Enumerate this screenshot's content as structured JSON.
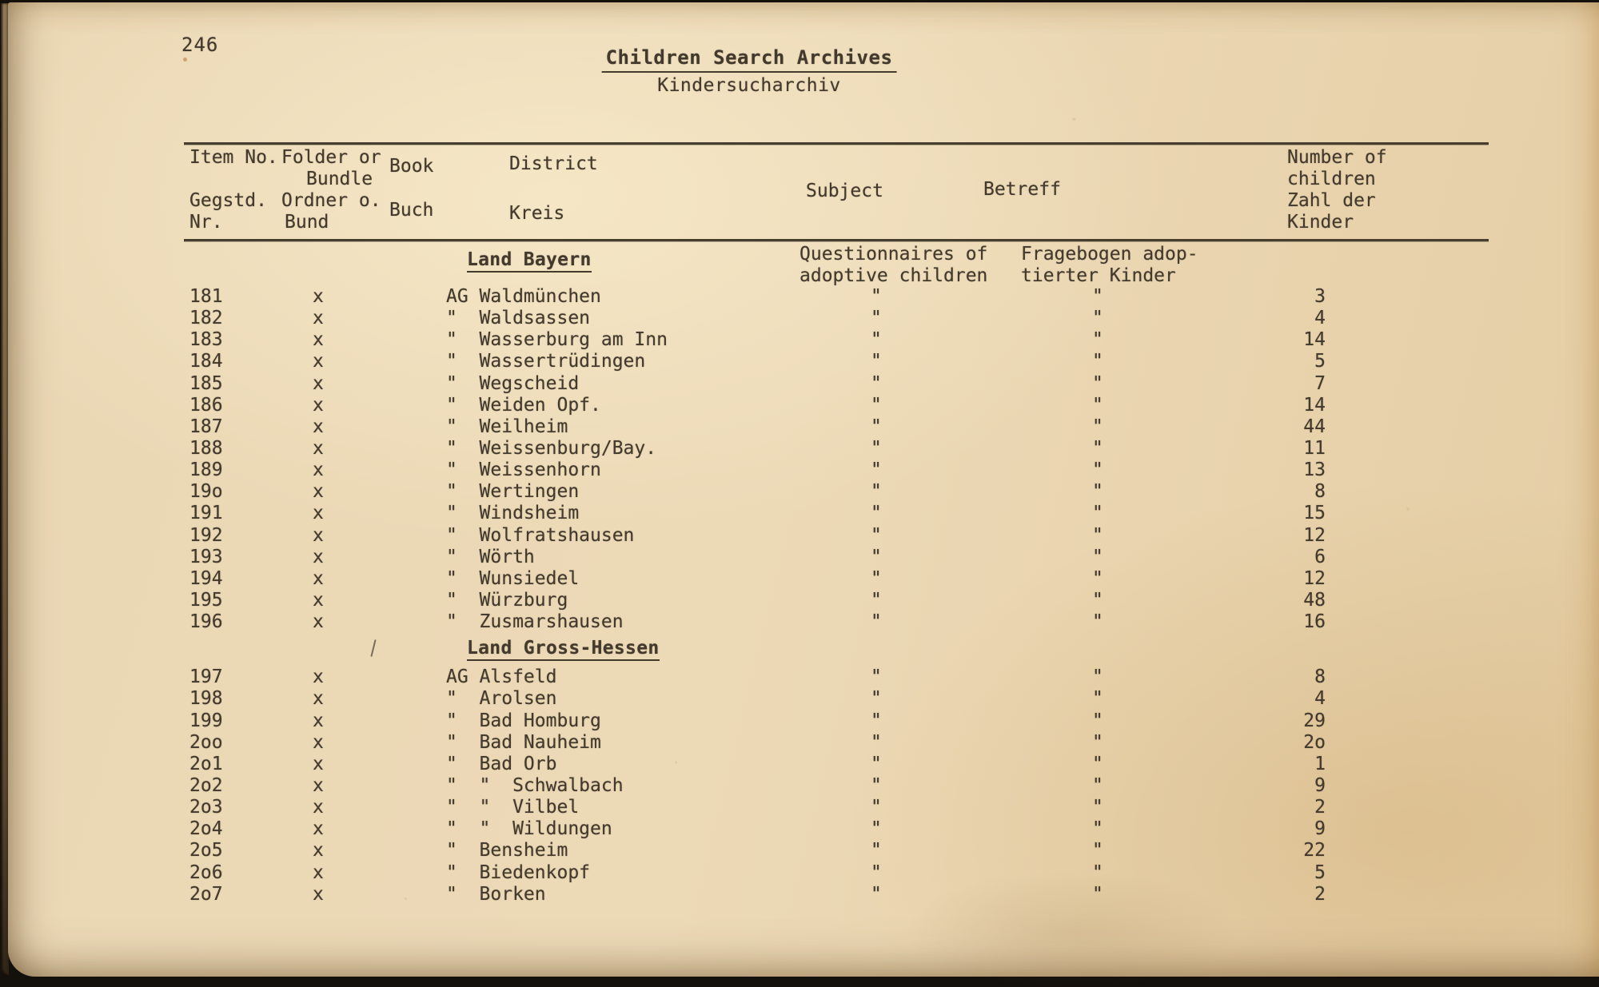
{
  "page": {
    "number": "246",
    "title_en": "Children Search Archives",
    "title_de": "Kindersucharchiv"
  },
  "table": {
    "headers": {
      "item_en": "Item No.",
      "item_de_1": "Gegstd.",
      "item_de_2": "Nr.",
      "folder_en_1": "Folder or",
      "folder_en_2": "Bundle",
      "folder_de_1": "Ordner o.",
      "folder_de_2": "Bund",
      "book_en": "Book",
      "book_de": "Buch",
      "district_en": "District",
      "district_de": "Kreis",
      "subject_en": "Subject",
      "subject_de": "Betreff",
      "number_1": "Number of",
      "number_2": "children",
      "number_3": "Zahl der",
      "number_4": "Kinder"
    },
    "sections": [
      {
        "title": "Land Bayern",
        "note_en_1": "Questionnaires of",
        "note_en_2": "adoptive children",
        "note_de_1": "Fragebogen adop-",
        "note_de_2": "tierter Kinder",
        "rows": [
          {
            "item": "181",
            "folder": "x",
            "district": "AG Waldmünchen",
            "subject": "\"",
            "betreff": "\"",
            "children": "3"
          },
          {
            "item": "182",
            "folder": "x",
            "district": "\"  Waldsassen",
            "subject": "\"",
            "betreff": "\"",
            "children": "4"
          },
          {
            "item": "183",
            "folder": "x",
            "district": "\"  Wasserburg am Inn",
            "subject": "\"",
            "betreff": "\"",
            "children": "14"
          },
          {
            "item": "184",
            "folder": "x",
            "district": "\"  Wassertrüdingen",
            "subject": "\"",
            "betreff": "\"",
            "children": "5"
          },
          {
            "item": "185",
            "folder": "x",
            "district": "\"  Wegscheid",
            "subject": "\"",
            "betreff": "\"",
            "children": "7"
          },
          {
            "item": "186",
            "folder": "x",
            "district": "\"  Weiden Opf.",
            "subject": "\"",
            "betreff": "\"",
            "children": "14"
          },
          {
            "item": "187",
            "folder": "x",
            "district": "\"  Weilheim",
            "subject": "\"",
            "betreff": "\"",
            "children": "44"
          },
          {
            "item": "188",
            "folder": "x",
            "district": "\"  Weissenburg/Bay.",
            "subject": "\"",
            "betreff": "\"",
            "children": "11"
          },
          {
            "item": "189",
            "folder": "x",
            "district": "\"  Weissenhorn",
            "subject": "\"",
            "betreff": "\"",
            "children": "13"
          },
          {
            "item": "19o",
            "folder": "x",
            "district": "\"  Wertingen",
            "subject": "\"",
            "betreff": "\"",
            "children": "8"
          },
          {
            "item": "191",
            "folder": "x",
            "district": "\"  Windsheim",
            "subject": "\"",
            "betreff": "\"",
            "children": "15"
          },
          {
            "item": "192",
            "folder": "x",
            "district": "\"  Wolfratshausen",
            "subject": "\"",
            "betreff": "\"",
            "children": "12"
          },
          {
            "item": "193",
            "folder": "x",
            "district": "\"  Wörth",
            "subject": "\"",
            "betreff": "\"",
            "children": "6"
          },
          {
            "item": "194",
            "folder": "x",
            "district": "\"  Wunsiedel",
            "subject": "\"",
            "betreff": "\"",
            "children": "12"
          },
          {
            "item": "195",
            "folder": "x",
            "district": "\"  Würzburg",
            "subject": "\"",
            "betreff": "\"",
            "children": "48"
          },
          {
            "item": "196",
            "folder": "x",
            "district": "\"  Zusmarshausen",
            "subject": "\"",
            "betreff": "\"",
            "children": "16"
          }
        ]
      },
      {
        "title": "Land Gross-Hessen",
        "rows": [
          {
            "item": "197",
            "folder": "x",
            "district": "AG Alsfeld",
            "subject": "\"",
            "betreff": "\"",
            "children": "8"
          },
          {
            "item": "198",
            "folder": "x",
            "district": "\"  Arolsen",
            "subject": "\"",
            "betreff": "\"",
            "children": "4"
          },
          {
            "item": "199",
            "folder": "x",
            "district": "\"  Bad Homburg",
            "subject": "\"",
            "betreff": "\"",
            "children": "29"
          },
          {
            "item": "2oo",
            "folder": "x",
            "district": "\"  Bad Nauheim",
            "subject": "\"",
            "betreff": "\"",
            "children": "2o"
          },
          {
            "item": "2o1",
            "folder": "x",
            "district": "\"  Bad Orb",
            "subject": "\"",
            "betreff": "\"",
            "children": "1"
          },
          {
            "item": "2o2",
            "folder": "x",
            "district": "\"  \"  Schwalbach",
            "subject": "\"",
            "betreff": "\"",
            "children": "9"
          },
          {
            "item": "2o3",
            "folder": "x",
            "district": "\"  \"  Vilbel",
            "subject": "\"",
            "betreff": "\"",
            "children": "2"
          },
          {
            "item": "2o4",
            "folder": "x",
            "district": "\"  \"  Wildungen",
            "subject": "\"",
            "betreff": "\"",
            "children": "9"
          },
          {
            "item": "2o5",
            "folder": "x",
            "district": "\"  Bensheim",
            "subject": "\"",
            "betreff": "\"",
            "children": "22"
          },
          {
            "item": "2o6",
            "folder": "x",
            "district": "\"  Biedenkopf",
            "subject": "\"",
            "betreff": "\"",
            "children": "5"
          },
          {
            "item": "2o7",
            "folder": "x",
            "district": "\"  Borken",
            "subject": "\"",
            "betreff": "\"",
            "children": "2"
          }
        ]
      }
    ]
  }
}
